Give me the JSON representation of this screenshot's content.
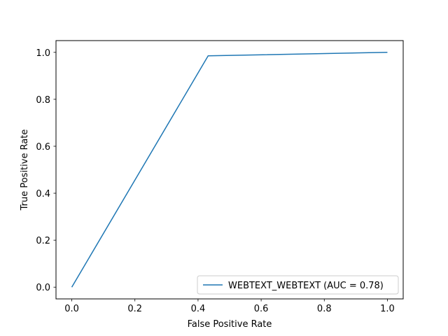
{
  "chart_data": {
    "type": "line",
    "title": "",
    "xlabel": "False Positive Rate",
    "ylabel": "True Positive Rate",
    "xlim": [
      -0.05,
      1.05
    ],
    "ylim": [
      -0.05,
      1.05
    ],
    "xticks": [
      "0.0",
      "0.2",
      "0.4",
      "0.6",
      "0.8",
      "1.0"
    ],
    "yticks": [
      "0.0",
      "0.2",
      "0.4",
      "0.6",
      "0.8",
      "1.0"
    ],
    "grid": false,
    "legend_position": "lower-right",
    "series": [
      {
        "name": "WEBTEXT_WEBTEXT (AUC = 0.78)",
        "color": "#1f77b4",
        "x": [
          0.0,
          0.432,
          1.0
        ],
        "y": [
          0.0,
          0.985,
          1.0
        ]
      }
    ]
  }
}
